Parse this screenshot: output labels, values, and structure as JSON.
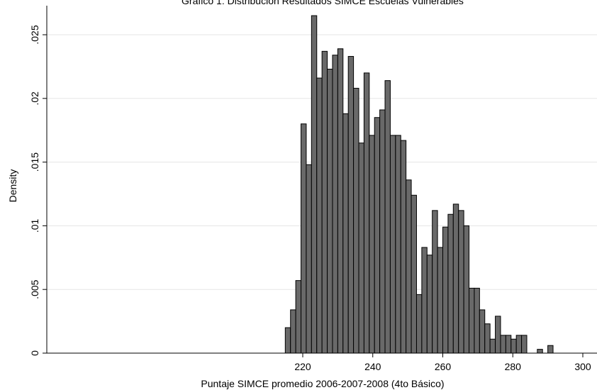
{
  "chart_data": {
    "type": "bar",
    "title": "Gráfico 1: Distribución Resultados SIMCE Escuelas Vulnerables",
    "xlabel": "Puntaje SIMCE promedio 2006-2007-2008 (4to Básico)",
    "ylabel": "Density",
    "bin_start": 215,
    "bin_width": 1.5,
    "xlim": [
      150,
      302.5
    ],
    "ylim": [
      0,
      0.0275
    ],
    "x_ticks": [
      "220",
      "240",
      "260",
      "280",
      "300"
    ],
    "x_tick_values": [
      220,
      240,
      260,
      280,
      300
    ],
    "y_ticks": [
      "0",
      ".005",
      ".01",
      ".015",
      ".02",
      ".025"
    ],
    "y_tick_values": [
      0,
      0.005,
      0.01,
      0.015,
      0.02,
      0.025
    ],
    "grid": true,
    "bar_fill": "#696969",
    "values": [
      0.002,
      0.0034,
      0.0057,
      0.018,
      0.0148,
      0.0265,
      0.0216,
      0.0237,
      0.0223,
      0.0234,
      0.0239,
      0.0188,
      0.0233,
      0.0208,
      0.0165,
      0.022,
      0.0171,
      0.0185,
      0.0191,
      0.0214,
      0.0171,
      0.0171,
      0.0167,
      0.0136,
      0.0124,
      0.0046,
      0.0083,
      0.0077,
      0.0112,
      0.0083,
      0.0099,
      0.0109,
      0.0117,
      0.0112,
      0.01,
      0.0051,
      0.0051,
      0.0034,
      0.0023,
      0.0011,
      0.0029,
      0.0014,
      0.0014,
      0.0011,
      0.0014,
      0.0014,
      0,
      0,
      0.0003,
      0,
      0.0006
    ]
  }
}
